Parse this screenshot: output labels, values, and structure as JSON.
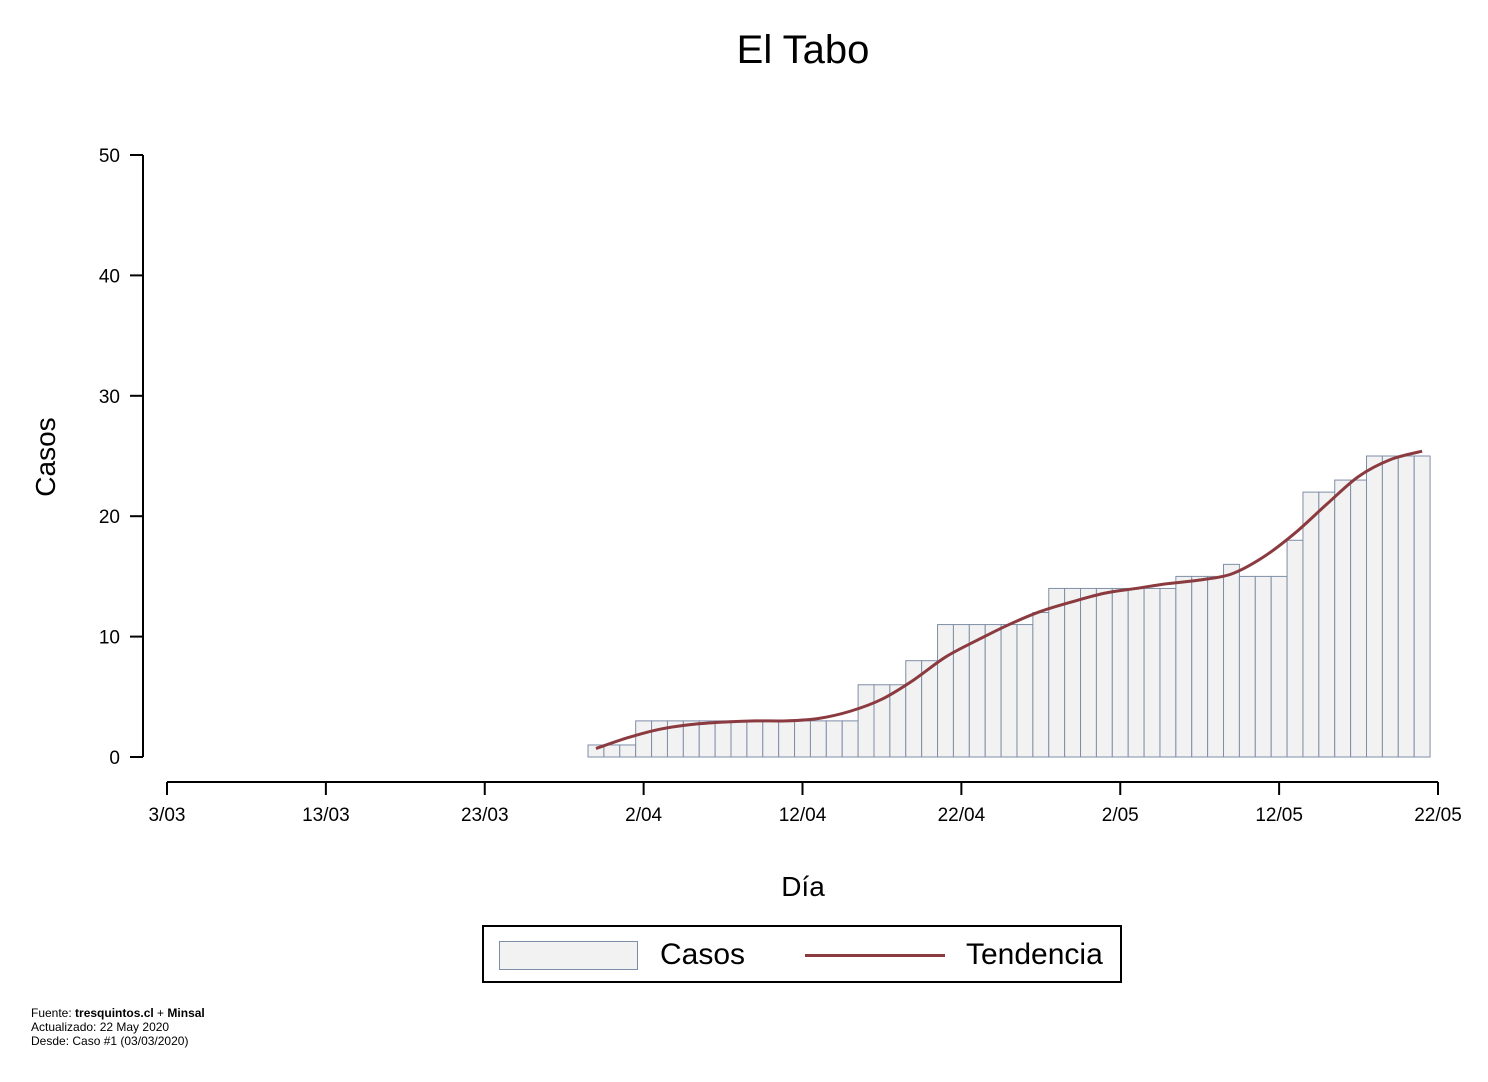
{
  "chart_data": {
    "type": "bar",
    "title": "El Tabo",
    "xlabel": "Día",
    "ylabel": "Casos",
    "ylim": [
      0,
      50
    ],
    "yticks": [
      0,
      10,
      20,
      30,
      40,
      50
    ],
    "xtick_labels": [
      "3/03",
      "13/03",
      "23/03",
      "2/04",
      "12/04",
      "22/04",
      "2/05",
      "12/05",
      "22/05"
    ],
    "date_start": "2020-03-03",
    "date_end": "2020-05-22",
    "bar_dates": [
      "2020-03-30",
      "2020-03-31",
      "2020-04-01",
      "2020-04-02",
      "2020-04-03",
      "2020-04-04",
      "2020-04-05",
      "2020-04-06",
      "2020-04-07",
      "2020-04-08",
      "2020-04-09",
      "2020-04-10",
      "2020-04-11",
      "2020-04-12",
      "2020-04-13",
      "2020-04-14",
      "2020-04-15",
      "2020-04-16",
      "2020-04-17",
      "2020-04-18",
      "2020-04-19",
      "2020-04-20",
      "2020-04-21",
      "2020-04-22",
      "2020-04-23",
      "2020-04-24",
      "2020-04-25",
      "2020-04-26",
      "2020-04-27",
      "2020-04-28",
      "2020-04-29",
      "2020-04-30",
      "2020-05-01",
      "2020-05-02",
      "2020-05-03",
      "2020-05-04",
      "2020-05-05",
      "2020-05-06",
      "2020-05-07",
      "2020-05-08",
      "2020-05-09",
      "2020-05-10",
      "2020-05-11",
      "2020-05-12",
      "2020-05-13",
      "2020-05-14",
      "2020-05-15",
      "2020-05-16",
      "2020-05-17",
      "2020-05-18",
      "2020-05-19",
      "2020-05-20",
      "2020-05-21"
    ],
    "series": [
      {
        "name": "Casos",
        "values": [
          1,
          1,
          1,
          3,
          3,
          3,
          3,
          3,
          3,
          3,
          3,
          3,
          3,
          3,
          3,
          3,
          3,
          6,
          6,
          6,
          8,
          8,
          11,
          11,
          11,
          11,
          11,
          11,
          12,
          14,
          14,
          14,
          14,
          14,
          14,
          14,
          14,
          15,
          15,
          15,
          16,
          15,
          15,
          15,
          18,
          22,
          22,
          23,
          23,
          25,
          25,
          25,
          25
        ]
      },
      {
        "name": "Tendencia",
        "dates": [
          "2020-03-30",
          "2020-04-01",
          "2020-04-03",
          "2020-04-05",
          "2020-04-07",
          "2020-04-09",
          "2020-04-11",
          "2020-04-13",
          "2020-04-15",
          "2020-04-17",
          "2020-04-19",
          "2020-04-21",
          "2020-04-23",
          "2020-04-25",
          "2020-04-27",
          "2020-04-29",
          "2020-05-01",
          "2020-05-03",
          "2020-05-05",
          "2020-05-07",
          "2020-05-09",
          "2020-05-11",
          "2020-05-13",
          "2020-05-15",
          "2020-05-17",
          "2020-05-19",
          "2020-05-21"
        ],
        "values": [
          0.7,
          1.6,
          2.3,
          2.7,
          2.9,
          3.0,
          3.0,
          3.2,
          3.8,
          4.8,
          6.4,
          8.3,
          9.7,
          11.0,
          12.1,
          12.9,
          13.6,
          14.0,
          14.4,
          14.7,
          15.2,
          16.6,
          18.6,
          21.0,
          23.3,
          24.7,
          25.4
        ]
      }
    ],
    "colors": {
      "bar_fill": "#f2f2f2",
      "bar_stroke": "#7f8ea8",
      "trend": "#8b3a3f"
    },
    "legend_position": "bottom"
  },
  "legend": {
    "bars_label": "Casos",
    "line_label": "Tendencia"
  },
  "footer": {
    "source_prefix": "Fuente: ",
    "source_site": "tresquintos.cl",
    "source_join": " + ",
    "source_org": "Minsal",
    "updated": "Actualizado: 22 May 2020",
    "since": "Desde: Caso #1  (03/03/2020)"
  }
}
